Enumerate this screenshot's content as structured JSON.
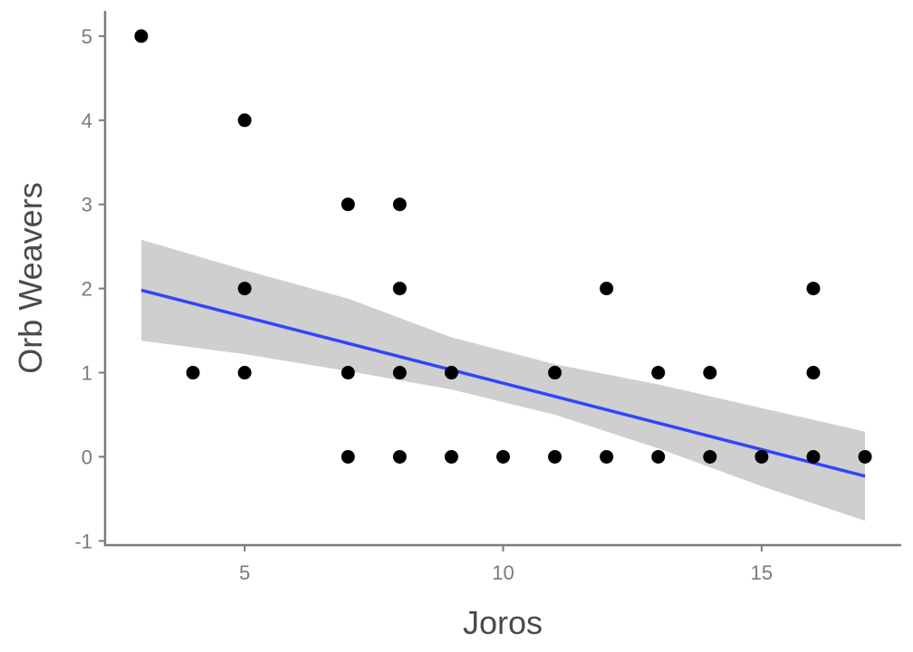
{
  "chart_data": {
    "type": "scatter",
    "title": "",
    "xlabel": "Joros",
    "ylabel": "Orb Weavers",
    "xlim": [
      2.3,
      17.7
    ],
    "ylim": [
      -1.05,
      5.3
    ],
    "xticks": [
      5,
      10,
      15
    ],
    "yticks": [
      -1,
      0,
      1,
      2,
      3,
      4,
      5
    ],
    "grid": false,
    "legend": "none",
    "points": [
      [
        3,
        5
      ],
      [
        4,
        1
      ],
      [
        5,
        4
      ],
      [
        5,
        2
      ],
      [
        5,
        1
      ],
      [
        7,
        3
      ],
      [
        7,
        1
      ],
      [
        7,
        0
      ],
      [
        8,
        3
      ],
      [
        8,
        2
      ],
      [
        8,
        1
      ],
      [
        8,
        0
      ],
      [
        9,
        1
      ],
      [
        9,
        0
      ],
      [
        10,
        0
      ],
      [
        11,
        1
      ],
      [
        11,
        0
      ],
      [
        12,
        2
      ],
      [
        12,
        0
      ],
      [
        13,
        1
      ],
      [
        13,
        0
      ],
      [
        14,
        1
      ],
      [
        14,
        0
      ],
      [
        15,
        0
      ],
      [
        16,
        2
      ],
      [
        16,
        1
      ],
      [
        16,
        0
      ],
      [
        17,
        0
      ]
    ],
    "trend_line": {
      "method": "linear",
      "x": [
        3,
        17
      ],
      "y": [
        1.98,
        -0.23
      ],
      "ci_upper": [
        [
          3,
          2.58
        ],
        [
          5,
          2.22
        ],
        [
          7,
          1.88
        ],
        [
          9,
          1.42
        ],
        [
          11,
          1.1
        ],
        [
          13,
          0.86
        ],
        [
          15,
          0.58
        ],
        [
          17,
          0.3
        ]
      ],
      "ci_lower": [
        [
          3,
          1.38
        ],
        [
          5,
          1.22
        ],
        [
          7,
          1.02
        ],
        [
          9,
          0.8
        ],
        [
          11,
          0.5
        ],
        [
          13,
          0.1
        ],
        [
          15,
          -0.35
        ],
        [
          17,
          -0.76
        ]
      ]
    },
    "colors": {
      "points": "#000000",
      "trend_line": "#3344ff",
      "ci_band": "#cccccc",
      "axis": "#7a7a7a"
    }
  }
}
